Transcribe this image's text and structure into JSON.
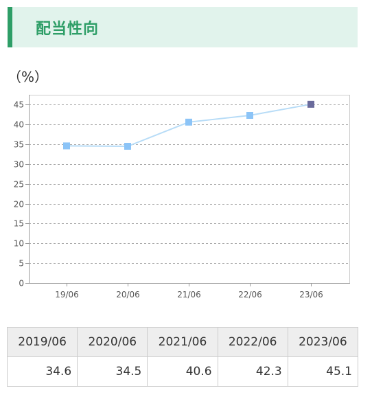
{
  "section": {
    "title": "配当性向"
  },
  "chart_data": {
    "type": "line",
    "ylabel": "（%）",
    "categories": [
      "19/06",
      "20/06",
      "21/06",
      "22/06",
      "23/06"
    ],
    "series": [
      {
        "values": [
          34.6,
          34.5,
          40.6,
          42.3,
          45.1
        ]
      }
    ],
    "ylim": [
      0,
      47.5
    ],
    "yticks": [
      0,
      5,
      10,
      15,
      20,
      25,
      30,
      35,
      40,
      45
    ],
    "grid": true,
    "highlight_last_point": true,
    "colors": {
      "line": "#b7dcf7",
      "marker": "#8cc4f7",
      "marker_last": "#6a6b9c",
      "grid": "#aaaaaa",
      "axis": "#999999"
    }
  },
  "table": {
    "headers": [
      "2019/06",
      "2020/06",
      "2021/06",
      "2022/06",
      "2023/06"
    ],
    "values": [
      "34.6",
      "34.5",
      "40.6",
      "42.3",
      "45.1"
    ]
  }
}
